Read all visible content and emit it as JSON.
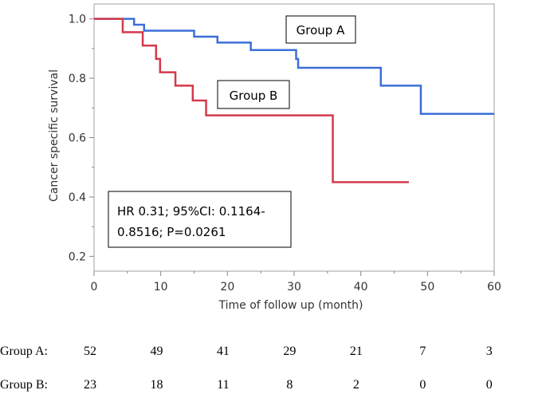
{
  "chart_data": {
    "type": "line",
    "subtype": "kaplan-meier step",
    "xlabel": "Time of follow up (month)",
    "ylabel": "Cancer specific survival",
    "xlim": [
      0,
      60
    ],
    "ylim": [
      0.15,
      1.05
    ],
    "x_ticks": [
      "0",
      "10",
      "20",
      "30",
      "40",
      "50",
      "60"
    ],
    "y_ticks": [
      "0.2",
      "0.4",
      "0.6",
      "0.8",
      "1.0"
    ],
    "grid": false,
    "series": [
      {
        "name": "Group A",
        "color": "#3b6fd8",
        "x": [
          0,
          6,
          7,
          7.5,
          15,
          18.5,
          23.5,
          30,
          30.3,
          30.6,
          43,
          49,
          60
        ],
        "y": [
          1.0,
          0.98,
          0.98,
          0.96,
          0.94,
          0.92,
          0.895,
          0.895,
          0.865,
          0.835,
          0.775,
          0.68,
          0.68
        ]
      },
      {
        "name": "Group B",
        "color": "#d23a4b",
        "x": [
          0,
          4.3,
          7.3,
          9.3,
          9.9,
          12.2,
          14.8,
          16.8,
          35.8,
          47.2
        ],
        "y": [
          1.0,
          0.955,
          0.91,
          0.865,
          0.82,
          0.775,
          0.725,
          0.675,
          0.45,
          0.45
        ]
      }
    ],
    "annotation": "HR 0.31; 95%CI: 0.1164-0.8516; P=0.0261",
    "annotation_lines": [
      "HR 0.31; 95%CI: 0.1164-",
      "0.8516; P=0.0261"
    ],
    "number_at_risk": {
      "rows": [
        {
          "label": "Group A:",
          "values": [
            "52",
            "49",
            "41",
            "29",
            "21",
            "7",
            "3"
          ]
        },
        {
          "label": "Group B:",
          "values": [
            "23",
            "18",
            "11",
            "8",
            "2",
            "0",
            "0"
          ]
        }
      ]
    }
  }
}
